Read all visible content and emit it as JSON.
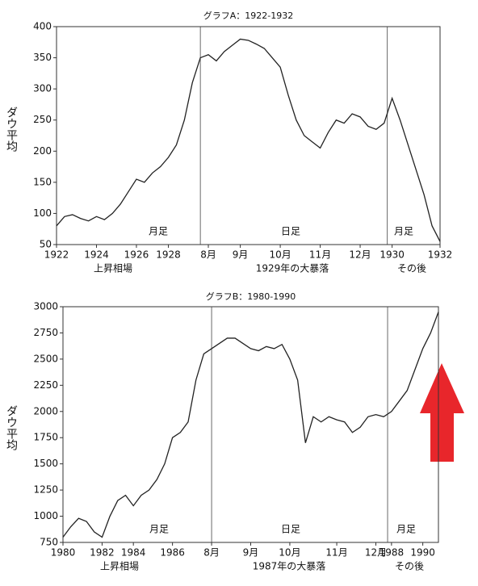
{
  "chart_data": [
    {
      "type": "line",
      "title": "グラフA：1922-1932",
      "y_label": "ダウ平均",
      "color": "#222222",
      "categories": [
        "1922",
        null,
        null,
        null,
        null,
        "1924",
        null,
        null,
        null,
        null,
        "1926",
        null,
        null,
        null,
        "1928",
        null,
        null,
        null,
        null,
        "8月",
        null,
        null,
        null,
        "9月",
        null,
        null,
        null,
        null,
        "10月",
        null,
        null,
        null,
        null,
        "11月",
        null,
        null,
        null,
        null,
        "12月",
        null,
        null,
        null,
        "1930",
        null,
        null,
        null,
        null,
        null,
        "1932"
      ],
      "values": [
        80,
        95,
        98,
        92,
        88,
        95,
        90,
        100,
        115,
        135,
        155,
        150,
        165,
        175,
        190,
        210,
        250,
        310,
        350,
        355,
        345,
        360,
        370,
        380,
        378,
        372,
        365,
        350,
        335,
        290,
        250,
        225,
        215,
        205,
        230,
        250,
        245,
        260,
        255,
        240,
        235,
        245,
        285,
        250,
        210,
        170,
        130,
        80,
        55
      ],
      "ylim": [
        50,
        400
      ],
      "yticks": [
        50,
        100,
        150,
        200,
        250,
        300,
        350,
        400
      ],
      "segments": [
        {
          "label": "月足",
          "period": "上昇相場"
        },
        {
          "label": "日足",
          "period": "1929年の大暴落"
        },
        {
          "label": "月足",
          "period": "その後"
        }
      ]
    },
    {
      "type": "line",
      "title": "グラフB：1980-1990",
      "y_label": "ダウ平均",
      "color": "#222222",
      "categories": [
        "1980",
        null,
        null,
        null,
        null,
        "1982",
        null,
        null,
        null,
        "1984",
        null,
        null,
        null,
        null,
        "1986",
        null,
        null,
        null,
        null,
        "8月",
        null,
        null,
        null,
        null,
        "9月",
        null,
        null,
        null,
        null,
        "10月",
        null,
        null,
        null,
        null,
        null,
        "11月",
        null,
        null,
        null,
        null,
        "12月",
        null,
        "1988",
        null,
        null,
        null,
        "1990",
        null,
        null
      ],
      "values": [
        800,
        900,
        980,
        950,
        850,
        800,
        1000,
        1150,
        1200,
        1100,
        1200,
        1250,
        1350,
        1500,
        1750,
        1800,
        1900,
        2300,
        2550,
        2600,
        2650,
        2700,
        2700,
        2650,
        2600,
        2580,
        2620,
        2600,
        2640,
        2500,
        2300,
        1700,
        1950,
        1900,
        1950,
        1920,
        1900,
        1800,
        1850,
        1950,
        1970,
        1950,
        2000,
        2100,
        2200,
        2400,
        2600,
        2750,
        2950
      ],
      "ylim": [
        750,
        3000
      ],
      "yticks": [
        750,
        1000,
        1250,
        1500,
        1750,
        2000,
        2250,
        2500,
        2750,
        3000
      ],
      "segments": [
        {
          "label": "月足",
          "period": "上昇相場"
        },
        {
          "label": "日足",
          "period": "1987年の大暴落"
        },
        {
          "label": "月足",
          "period": "その後"
        }
      ]
    }
  ]
}
